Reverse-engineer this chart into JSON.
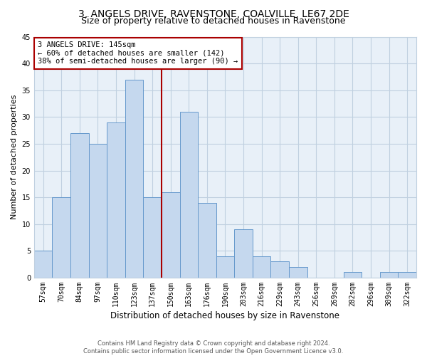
{
  "title_line1": "3, ANGELS DRIVE, RAVENSTONE, COALVILLE, LE67 2DE",
  "title_line2": "Size of property relative to detached houses in Ravenstone",
  "xlabel": "Distribution of detached houses by size in Ravenstone",
  "ylabel": "Number of detached properties",
  "categories": [
    "57sqm",
    "70sqm",
    "84sqm",
    "97sqm",
    "110sqm",
    "123sqm",
    "137sqm",
    "150sqm",
    "163sqm",
    "176sqm",
    "190sqm",
    "203sqm",
    "216sqm",
    "229sqm",
    "243sqm",
    "256sqm",
    "269sqm",
    "282sqm",
    "296sqm",
    "309sqm",
    "322sqm"
  ],
  "values": [
    5,
    15,
    27,
    25,
    29,
    37,
    15,
    16,
    31,
    14,
    4,
    9,
    4,
    3,
    2,
    0,
    0,
    1,
    0,
    1,
    1
  ],
  "bar_color": "#c5d8ee",
  "bar_edge_color": "#6699cc",
  "grid_color": "#c0d0e0",
  "bg_color": "#e8f0f8",
  "marker_color": "#aa0000",
  "annotation_line1": "3 ANGELS DRIVE: 145sqm",
  "annotation_line2": "← 60% of detached houses are smaller (142)",
  "annotation_line3": "38% of semi-detached houses are larger (90) →",
  "annotation_box_color": "#aa0000",
  "ylim": [
    0,
    45
  ],
  "yticks": [
    0,
    5,
    10,
    15,
    20,
    25,
    30,
    35,
    40,
    45
  ],
  "footer_line1": "Contains HM Land Registry data © Crown copyright and database right 2024.",
  "footer_line2": "Contains public sector information licensed under the Open Government Licence v3.0.",
  "title_fontsize": 10,
  "subtitle_fontsize": 9,
  "tick_fontsize": 7,
  "ylabel_fontsize": 8,
  "xlabel_fontsize": 8.5,
  "annotation_fontsize": 7.5,
  "footer_fontsize": 6
}
